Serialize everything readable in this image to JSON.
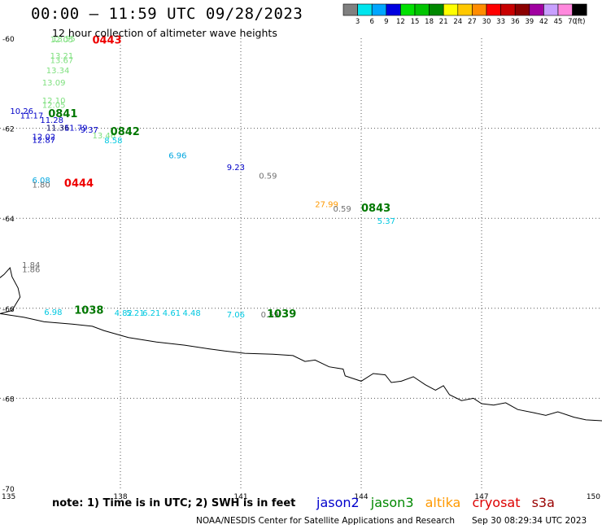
{
  "title": "00:00 – 11:59 UTC 09/28/2023",
  "subtitle": "12 hour collection of altimeter wave heights",
  "legend": {
    "unit": "(ft)",
    "entries": [
      {
        "label": "3",
        "color": "#808080"
      },
      {
        "label": "6",
        "color": "#00e5ee"
      },
      {
        "label": "9",
        "color": "#00a6ff"
      },
      {
        "label": "12",
        "color": "#0000e0"
      },
      {
        "label": "15",
        "color": "#00e000"
      },
      {
        "label": "18",
        "color": "#00c400"
      },
      {
        "label": "21",
        "color": "#008800"
      },
      {
        "label": "24",
        "color": "#ffff00"
      },
      {
        "label": "27",
        "color": "#ffc800"
      },
      {
        "label": "30",
        "color": "#ff8c00"
      },
      {
        "label": "33",
        "color": "#ff0000"
      },
      {
        "label": "36",
        "color": "#c80000"
      },
      {
        "label": "39",
        "color": "#8b0000"
      },
      {
        "label": "42",
        "color": "#a000a0"
      },
      {
        "label": "45",
        "color": "#c8a0ff"
      },
      {
        "label": "70",
        "color": "#ff88dd"
      },
      {
        "label": "",
        "color": "#000000"
      }
    ]
  },
  "map": {
    "lon_range": [
      135,
      150
    ],
    "lat_range": [
      -70,
      -60
    ],
    "lon_ticks": [
      "135",
      "138",
      "141",
      "144",
      "147",
      "150"
    ],
    "lat_ticks": [
      "-60",
      "-62",
      "-64",
      "-66",
      "-68",
      "-70"
    ],
    "grid": "dotted"
  },
  "labels": [
    {
      "text": "12.05",
      "lon": 136.25,
      "lat": -60.09,
      "color": "#7fe07f"
    },
    {
      "text": "13.55",
      "lon": 136.3,
      "lat": -60.07,
      "color": "#7fe07f"
    },
    {
      "text": "13.21",
      "lon": 136.25,
      "lat": -60.45,
      "color": "#7fe07f"
    },
    {
      "text": "13.67",
      "lon": 136.25,
      "lat": -60.55,
      "color": "#7fe07f"
    },
    {
      "text": "13.34",
      "lon": 136.15,
      "lat": -60.78,
      "color": "#7fe07f"
    },
    {
      "text": "13.09",
      "lon": 136.05,
      "lat": -61.05,
      "color": "#7fe07f"
    },
    {
      "text": "12.10",
      "lon": 136.05,
      "lat": -61.45,
      "color": "#7fe07f"
    },
    {
      "text": "12.05",
      "lon": 136.05,
      "lat": -61.55,
      "color": "#7fe07f"
    },
    {
      "text": "10.26",
      "lon": 135.25,
      "lat": -61.68,
      "color": "#0000c8"
    },
    {
      "text": "11.17",
      "lon": 135.5,
      "lat": -61.78,
      "color": "#0000c8"
    },
    {
      "text": "11.28",
      "lon": 136.0,
      "lat": -61.88,
      "color": "#0000c8"
    },
    {
      "text": "11.36",
      "lon": 136.15,
      "lat": -62.05,
      "color": "#000060"
    },
    {
      "text": "11.79",
      "lon": 136.6,
      "lat": -62.05,
      "color": "#0000c8"
    },
    {
      "text": "12.02",
      "lon": 135.8,
      "lat": -62.25,
      "color": "#0000c8"
    },
    {
      "text": "12.87",
      "lon": 135.8,
      "lat": -62.32,
      "color": "#0000c8"
    },
    {
      "text": "9.37",
      "lon": 137.0,
      "lat": -62.1,
      "color": "#0000c8"
    },
    {
      "text": "13.46",
      "lon": 137.3,
      "lat": -62.22,
      "color": "#7fe07f"
    },
    {
      "text": "8.58",
      "lon": 137.6,
      "lat": -62.33,
      "color": "#00c8e0"
    },
    {
      "text": "6.96",
      "lon": 139.2,
      "lat": -62.67,
      "color": "#00a6e0"
    },
    {
      "text": "9.23",
      "lon": 140.65,
      "lat": -62.93,
      "color": "#0000c8"
    },
    {
      "text": "0.59",
      "lon": 141.45,
      "lat": -63.12,
      "color": "#707070"
    },
    {
      "text": "6.08",
      "lon": 135.8,
      "lat": -63.22,
      "color": "#00a6e0"
    },
    {
      "text": "1.80",
      "lon": 135.8,
      "lat": -63.32,
      "color": "#707070"
    },
    {
      "text": "27.99",
      "lon": 142.85,
      "lat": -63.75,
      "color": "#ff9900"
    },
    {
      "text": "0.59",
      "lon": 143.3,
      "lat": -63.85,
      "color": "#707070"
    },
    {
      "text": "5.37",
      "lon": 144.4,
      "lat": -64.12,
      "color": "#00c8e0"
    },
    {
      "text": "1.84",
      "lon": 135.55,
      "lat": -65.1,
      "color": "#707070"
    },
    {
      "text": "1.86",
      "lon": 135.55,
      "lat": -65.2,
      "color": "#707070"
    },
    {
      "text": "6.98",
      "lon": 136.1,
      "lat": -66.15,
      "color": "#00c8e0"
    },
    {
      "text": "5.21",
      "lon": 138.15,
      "lat": -66.17,
      "color": "#00c8e0"
    },
    {
      "text": "4.82",
      "lon": 137.85,
      "lat": -66.17,
      "color": "#00c8e0"
    },
    {
      "text": "6.21",
      "lon": 138.55,
      "lat": -66.17,
      "color": "#00c8e0"
    },
    {
      "text": "4.61",
      "lon": 139.05,
      "lat": -66.17,
      "color": "#00c8e0"
    },
    {
      "text": "4.48",
      "lon": 139.55,
      "lat": -66.17,
      "color": "#00c8e0"
    },
    {
      "text": "7.06",
      "lon": 140.65,
      "lat": -66.2,
      "color": "#00c8e0"
    },
    {
      "text": "0.59",
      "lon": 141.5,
      "lat": -66.2,
      "color": "#707070"
    }
  ],
  "passes": [
    {
      "text": "0443",
      "lon": 137.3,
      "lat": -60.12,
      "color": "#ee0000"
    },
    {
      "text": "0841",
      "lon": 136.2,
      "lat": -61.75,
      "color": "#007700"
    },
    {
      "text": "0842",
      "lon": 137.75,
      "lat": -62.15,
      "color": "#007700"
    },
    {
      "text": "0444",
      "lon": 136.6,
      "lat": -63.3,
      "color": "#ee0000"
    },
    {
      "text": "0843",
      "lon": 144.0,
      "lat": -63.85,
      "color": "#007700"
    },
    {
      "text": "1038",
      "lon": 136.85,
      "lat": -66.12,
      "color": "#007700"
    },
    {
      "text": "1039",
      "lon": 141.65,
      "lat": -66.2,
      "color": "#007700"
    }
  ],
  "coastline": [
    [
      135.0,
      -65.32
    ],
    [
      135.1,
      -65.25
    ],
    [
      135.25,
      -65.1
    ],
    [
      135.3,
      -65.3
    ],
    [
      135.45,
      -65.55
    ],
    [
      135.5,
      -65.75
    ],
    [
      135.4,
      -65.9
    ],
    [
      135.3,
      -66.05
    ],
    [
      135.0,
      -66.12
    ],
    [
      135.6,
      -66.2
    ],
    [
      136.1,
      -66.3
    ],
    [
      136.8,
      -66.35
    ],
    [
      137.3,
      -66.4
    ],
    [
      137.6,
      -66.5
    ],
    [
      138.2,
      -66.65
    ],
    [
      138.9,
      -66.75
    ],
    [
      139.6,
      -66.82
    ],
    [
      140.2,
      -66.9
    ],
    [
      140.6,
      -66.95
    ],
    [
      141.1,
      -67.0
    ],
    [
      141.8,
      -67.02
    ],
    [
      142.3,
      -67.05
    ],
    [
      142.6,
      -67.18
    ],
    [
      142.85,
      -67.15
    ],
    [
      143.2,
      -67.3
    ],
    [
      143.55,
      -67.35
    ],
    [
      143.6,
      -67.5
    ],
    [
      144.0,
      -67.62
    ],
    [
      144.3,
      -67.45
    ],
    [
      144.6,
      -67.48
    ],
    [
      144.75,
      -67.65
    ],
    [
      145.0,
      -67.62
    ],
    [
      145.3,
      -67.52
    ],
    [
      145.6,
      -67.7
    ],
    [
      145.85,
      -67.82
    ],
    [
      146.05,
      -67.72
    ],
    [
      146.2,
      -67.92
    ],
    [
      146.5,
      -68.05
    ],
    [
      146.8,
      -68.0
    ],
    [
      147.0,
      -68.12
    ],
    [
      147.3,
      -68.15
    ],
    [
      147.6,
      -68.1
    ],
    [
      147.9,
      -68.25
    ],
    [
      148.3,
      -68.32
    ],
    [
      148.6,
      -68.38
    ],
    [
      148.9,
      -68.3
    ],
    [
      149.3,
      -68.42
    ],
    [
      149.6,
      -68.48
    ],
    [
      150.0,
      -68.5
    ]
  ],
  "footer": {
    "note": "note:  1) Time is in UTC; 2) SWH is in feet",
    "satellites": [
      {
        "name": "jason2",
        "color": "#0000cc"
      },
      {
        "name": "jason3",
        "color": "#008800"
      },
      {
        "name": "altika",
        "color": "#ff9900"
      },
      {
        "name": "cryosat",
        "color": "#dd0000"
      },
      {
        "name": "s3a",
        "color": "#990000"
      }
    ],
    "credit": "NOAA/NESDIS Center for Satellite Applications and Research",
    "timestamp": "Sep 30 08:29:34 UTC 2023"
  }
}
